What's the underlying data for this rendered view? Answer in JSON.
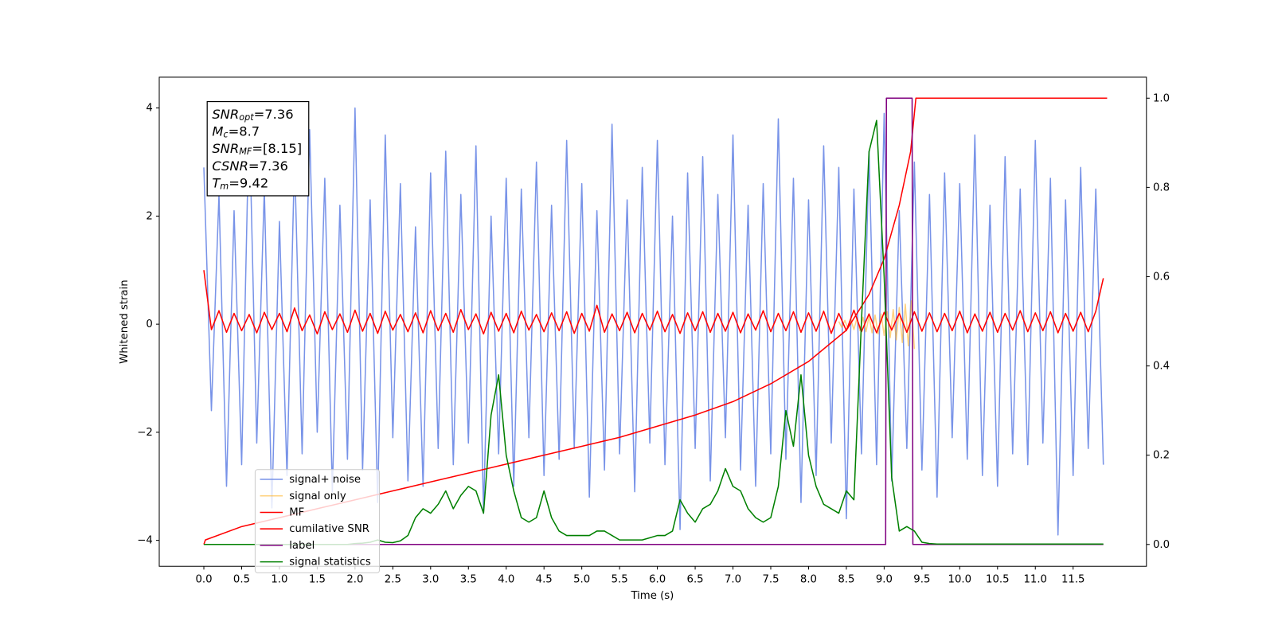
{
  "chart_data": {
    "type": "line",
    "xlabel": "Time (s)",
    "ylabel": "Whitened strain",
    "xlim": [
      -0.59,
      12.47
    ],
    "ylim": [
      -4.48,
      4.57
    ],
    "y2lim": [
      -0.049,
      1.047
    ],
    "xticks": [
      {
        "value": 0,
        "label": "0.0"
      },
      0.5,
      {
        "value": 1,
        "label": "1.0"
      },
      1.5,
      {
        "value": 2,
        "label": "2.0"
      },
      2.5,
      {
        "value": 3,
        "label": "3.0"
      },
      3.5,
      {
        "value": 4,
        "label": "4.0"
      },
      4.5,
      {
        "value": 5,
        "label": "5.0"
      },
      5.5,
      {
        "value": 6,
        "label": "6.0"
      },
      6.5,
      {
        "value": 7,
        "label": "7.0"
      },
      7.5,
      {
        "value": 8,
        "label": "8.0"
      },
      8.5,
      {
        "value": 9,
        "label": "9.0"
      },
      9.5,
      {
        "value": 10,
        "label": "10.0"
      },
      10.5,
      {
        "value": 11,
        "label": "11.0"
      },
      11.5
    ],
    "yticks": [
      {
        "value": -4,
        "label": "−4"
      },
      {
        "value": -2,
        "label": "−2"
      },
      0,
      2,
      4
    ],
    "y2ticks": [
      {
        "value": 0,
        "label": "0.0"
      },
      0.2,
      0.4,
      0.6,
      0.8,
      {
        "value": 1,
        "label": "1.0"
      }
    ],
    "legend": "lower left",
    "annotations": [
      {
        "symbol": "SNR",
        "sub": "opt",
        "text": "=7.36"
      },
      {
        "symbol": "M",
        "sub": "c",
        "text": "=8.7"
      },
      {
        "symbol": "SNR",
        "sub": "MF",
        "text": "=[8.15]"
      },
      {
        "symbol": "CSNR",
        "text": "=7.36"
      },
      {
        "symbol": "T",
        "sub": "m",
        "text": "=9.42"
      }
    ],
    "x": [
      0,
      0.1,
      0.2,
      0.3,
      0.4,
      0.5,
      0.6,
      0.7,
      0.8,
      0.9,
      1,
      1.1,
      1.2,
      1.3,
      1.4,
      1.5,
      1.6,
      1.7,
      1.8,
      1.9,
      2,
      2.1,
      2.2,
      2.3,
      2.4,
      2.5,
      2.6,
      2.7,
      2.8,
      2.9,
      3,
      3.1,
      3.2,
      3.3,
      3.4,
      3.5,
      3.6,
      3.7,
      3.8,
      3.9,
      4,
      4.1,
      4.2,
      4.3,
      4.4,
      4.5,
      4.6,
      4.7,
      4.8,
      4.9,
      5,
      5.1,
      5.2,
      5.3,
      5.4,
      5.5,
      5.6,
      5.7,
      5.8,
      5.9,
      6,
      6.1,
      6.2,
      6.3,
      6.4,
      6.5,
      6.6,
      6.7,
      6.8,
      6.9,
      7,
      7.1,
      7.2,
      7.3,
      7.4,
      7.5,
      7.6,
      7.7,
      7.8,
      7.9,
      8,
      8.1,
      8.2,
      8.3,
      8.4,
      8.5,
      8.6,
      8.7,
      8.8,
      8.9,
      9,
      9.1,
      9.2,
      9.3,
      9.4,
      9.5,
      9.6,
      9.7,
      9.8,
      9.9,
      10,
      10.1,
      10.2,
      10.3,
      10.4,
      10.5,
      10.6,
      10.7,
      10.8,
      10.9,
      11,
      11.1,
      11.2,
      11.3,
      11.4,
      11.5,
      11.6,
      11.7,
      11.8,
      11.9
    ],
    "series": [
      {
        "name": "signal+ noise",
        "color": "#7893e8",
        "axis": "y",
        "values": [
          2.9,
          -1.6,
          2.4,
          -3.0,
          2.1,
          -2.6,
          3.9,
          -2.2,
          2.5,
          -3.4,
          1.9,
          -2.8,
          3.1,
          -2.4,
          3.6,
          -2.0,
          2.7,
          -3.1,
          2.2,
          -2.5,
          4.0,
          -2.7,
          2.3,
          -3.3,
          3.5,
          -2.1,
          2.6,
          -2.9,
          1.8,
          -3.0,
          2.8,
          -2.3,
          3.2,
          -2.6,
          2.4,
          -2.2,
          3.3,
          -3.5,
          2.0,
          -2.4,
          2.7,
          -3.0,
          2.5,
          -2.1,
          3.0,
          -2.8,
          2.2,
          -2.5,
          3.4,
          -2.3,
          2.6,
          -3.2,
          2.1,
          -2.7,
          3.7,
          -2.4,
          2.3,
          -3.1,
          2.9,
          -2.2,
          3.4,
          -2.6,
          2.0,
          -3.8,
          2.8,
          -2.3,
          3.1,
          -2.9,
          2.4,
          -2.1,
          3.5,
          -2.7,
          2.2,
          -3.0,
          2.6,
          -2.4,
          3.8,
          -2.5,
          2.7,
          -3.3,
          2.3,
          -2.8,
          3.3,
          -2.2,
          2.9,
          -3.6,
          2.5,
          -2.4,
          3.2,
          -2.6,
          3.9,
          -2.9,
          2.1,
          -2.3,
          3.0,
          -2.7,
          2.4,
          -3.2,
          2.8,
          -2.1,
          2.6,
          -2.5,
          3.5,
          -2.8,
          2.2,
          -3.0,
          3.1,
          -2.4,
          2.5,
          -2.6,
          3.4,
          -2.2,
          2.7,
          -3.9,
          2.3,
          -2.8,
          2.9,
          -2.3,
          2.5,
          -2.6
        ]
      },
      {
        "name": "signal only",
        "color": "#ffa500",
        "alpha": 0.5,
        "axis": "y",
        "x": [
          8.4,
          8.44,
          8.48,
          8.52,
          8.56,
          8.6,
          8.64,
          8.68,
          8.72,
          8.76,
          8.8,
          8.84,
          8.88,
          8.92,
          8.96,
          9.0,
          9.04,
          9.08,
          9.12,
          9.16,
          9.2,
          9.24,
          9.28,
          9.32,
          9.36,
          9.4
        ],
        "values": [
          0.05,
          -0.06,
          0.07,
          -0.08,
          0.09,
          -0.1,
          0.11,
          -0.12,
          0.13,
          -0.14,
          0.15,
          -0.16,
          0.17,
          -0.18,
          0.19,
          -0.21,
          0.23,
          -0.25,
          0.27,
          -0.29,
          0.31,
          -0.34,
          0.37,
          -0.4,
          0.43,
          -0.46
        ]
      },
      {
        "name": "MF",
        "color": "#ff0000",
        "axis": "y",
        "values": [
          1.0,
          -0.1,
          0.25,
          -0.15,
          0.2,
          -0.12,
          0.18,
          -0.16,
          0.22,
          -0.1,
          0.2,
          -0.14,
          0.3,
          -0.12,
          0.17,
          -0.18,
          0.23,
          -0.1,
          0.19,
          -0.15,
          0.26,
          -0.13,
          0.2,
          -0.17,
          0.24,
          -0.11,
          0.18,
          -0.14,
          0.21,
          -0.16,
          0.25,
          -0.12,
          0.2,
          -0.15,
          0.27,
          -0.1,
          0.19,
          -0.18,
          0.22,
          -0.13,
          0.2,
          -0.16,
          0.24,
          -0.11,
          0.18,
          -0.14,
          0.21,
          -0.12,
          0.23,
          -0.17,
          0.2,
          -0.13,
          0.35,
          -0.15,
          0.19,
          -0.12,
          0.22,
          -0.16,
          0.2,
          -0.11,
          0.24,
          -0.14,
          0.18,
          -0.17,
          0.21,
          -0.12,
          0.23,
          -0.15,
          0.2,
          -0.13,
          0.22,
          -0.16,
          0.19,
          -0.11,
          0.25,
          -0.14,
          0.2,
          -0.12,
          0.23,
          -0.15,
          0.21,
          -0.13,
          0.24,
          -0.17,
          0.2,
          -0.12,
          0.26,
          -0.14,
          0.19,
          -0.16,
          0.22,
          -0.11,
          0.2,
          -0.15,
          0.23,
          -0.13,
          0.21,
          -0.14,
          0.2,
          -0.12,
          0.24,
          -0.16,
          0.19,
          -0.13,
          0.22,
          -0.15,
          0.2,
          -0.11,
          0.25,
          -0.14,
          0.21,
          -0.12,
          0.23,
          -0.16,
          0.2,
          -0.13,
          0.22,
          -0.14,
          0.24,
          0.85
        ]
      },
      {
        "name": "cumilative SNR",
        "color": "#ff0000",
        "axis": "y2",
        "x": [
          0,
          0.02,
          0.5,
          1,
          1.5,
          2,
          2.5,
          3,
          3.5,
          4,
          4.5,
          5,
          5.5,
          6,
          6.5,
          7,
          7.5,
          8,
          8.5,
          8.8,
          9.0,
          9.2,
          9.35,
          9.42,
          11.95
        ],
        "values": [
          0,
          0.01,
          0.04,
          0.06,
          0.08,
          0.1,
          0.12,
          0.14,
          0.16,
          0.18,
          0.2,
          0.22,
          0.24,
          0.265,
          0.29,
          0.32,
          0.36,
          0.41,
          0.48,
          0.56,
          0.64,
          0.76,
          0.88,
          1.0,
          1.0
        ]
      },
      {
        "name": "label",
        "color": "#800080",
        "axis": "y2",
        "x": [
          0,
          9.02,
          9.03,
          9.37,
          9.38,
          11.9
        ],
        "values": [
          0,
          0,
          1,
          1,
          0,
          0
        ]
      },
      {
        "name": "signal statistics",
        "color": "#008000",
        "axis": "y2",
        "values": [
          0,
          0,
          0,
          0,
          0,
          0,
          0,
          0,
          0,
          0,
          0,
          0,
          0,
          0,
          0,
          0,
          0,
          0,
          0,
          0,
          0.002,
          0.003,
          0.005,
          0.01,
          0.005,
          0.004,
          0.008,
          0.02,
          0.06,
          0.08,
          0.07,
          0.09,
          0.12,
          0.08,
          0.11,
          0.13,
          0.12,
          0.07,
          0.29,
          0.38,
          0.2,
          0.12,
          0.06,
          0.05,
          0.06,
          0.12,
          0.06,
          0.03,
          0.02,
          0.02,
          0.02,
          0.02,
          0.03,
          0.03,
          0.02,
          0.01,
          0.01,
          0.01,
          0.01,
          0.015,
          0.02,
          0.02,
          0.03,
          0.1,
          0.07,
          0.05,
          0.08,
          0.09,
          0.12,
          0.17,
          0.13,
          0.12,
          0.08,
          0.06,
          0.05,
          0.06,
          0.13,
          0.3,
          0.22,
          0.38,
          0.2,
          0.13,
          0.09,
          0.08,
          0.07,
          0.12,
          0.1,
          0.5,
          0.88,
          0.95,
          0.6,
          0.15,
          0.03,
          0.04,
          0.03,
          0.005,
          0.002,
          0.001,
          0.001,
          0.001,
          0.001,
          0.001,
          0.001,
          0.001,
          0.001,
          0.001,
          0.001,
          0.001,
          0.001,
          0.001,
          0.001,
          0.001,
          0.001,
          0.001,
          0.001,
          0.001,
          0.001,
          0.001,
          0.001,
          0.001
        ]
      }
    ]
  }
}
